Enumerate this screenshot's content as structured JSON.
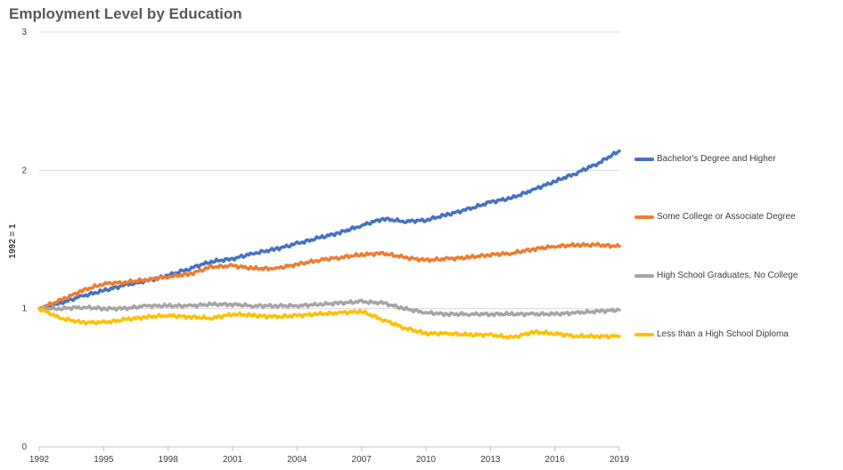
{
  "chart_data": {
    "type": "line",
    "title": "Employment Level by Education",
    "xlabel": "",
    "ylabel": "1992 = 1",
    "xlim": [
      1992,
      2019
    ],
    "ylim": [
      0,
      3
    ],
    "x_ticks": [
      1992,
      1995,
      1998,
      2001,
      2004,
      2007,
      2010,
      2013,
      2016,
      2019
    ],
    "y_ticks": [
      0,
      1,
      2,
      3
    ],
    "grid": "horizontal",
    "legend_position": "right",
    "series": [
      {
        "name": "Bachelor's Degree and Higher",
        "color": "#4472C4",
        "x": [
          1992,
          1993,
          1994,
          1995,
          1996,
          1997,
          1998,
          1999,
          2000,
          2001,
          2002,
          2003,
          2004,
          2005,
          2006,
          2007,
          2008,
          2009,
          2010,
          2011,
          2012,
          2013,
          2014,
          2015,
          2016,
          2017,
          2018,
          2019
        ],
        "values": [
          1.0,
          1.04,
          1.09,
          1.13,
          1.17,
          1.2,
          1.24,
          1.29,
          1.34,
          1.36,
          1.4,
          1.43,
          1.47,
          1.51,
          1.55,
          1.6,
          1.65,
          1.63,
          1.64,
          1.68,
          1.72,
          1.77,
          1.8,
          1.86,
          1.92,
          1.98,
          2.05,
          2.14
        ]
      },
      {
        "name": "Some College or Associate Degree",
        "color": "#ED7D31",
        "x": [
          1992,
          1993,
          1994,
          1995,
          1996,
          1997,
          1998,
          1999,
          2000,
          2001,
          2002,
          2003,
          2004,
          2005,
          2006,
          2007,
          2008,
          2009,
          2010,
          2011,
          2012,
          2013,
          2014,
          2015,
          2016,
          2017,
          2018,
          2019
        ],
        "values": [
          1.0,
          1.06,
          1.13,
          1.18,
          1.19,
          1.21,
          1.23,
          1.25,
          1.3,
          1.31,
          1.29,
          1.29,
          1.32,
          1.35,
          1.37,
          1.39,
          1.4,
          1.37,
          1.35,
          1.36,
          1.37,
          1.39,
          1.4,
          1.43,
          1.45,
          1.46,
          1.46,
          1.45
        ]
      },
      {
        "name": "High School Graduates, No College",
        "color": "#A5A5A5",
        "x": [
          1992,
          1993,
          1994,
          1995,
          1996,
          1997,
          1998,
          1999,
          2000,
          2001,
          2002,
          2003,
          2004,
          2005,
          2006,
          2007,
          2008,
          2009,
          2010,
          2011,
          2012,
          2013,
          2014,
          2015,
          2016,
          2017,
          2018,
          2019
        ],
        "values": [
          1.0,
          1.0,
          1.01,
          1.0,
          1.0,
          1.02,
          1.02,
          1.02,
          1.03,
          1.03,
          1.02,
          1.02,
          1.02,
          1.03,
          1.04,
          1.05,
          1.04,
          1.0,
          0.97,
          0.96,
          0.96,
          0.96,
          0.96,
          0.96,
          0.96,
          0.97,
          0.98,
          0.99
        ]
      },
      {
        "name": "Less than a High School Diploma",
        "color": "#FFC000",
        "x": [
          1992,
          1993,
          1994,
          1995,
          1996,
          1997,
          1998,
          1999,
          2000,
          2001,
          2002,
          2003,
          2004,
          2005,
          2006,
          2007,
          2008,
          2009,
          2010,
          2011,
          2012,
          2013,
          2014,
          2015,
          2016,
          2017,
          2018,
          2019
        ],
        "values": [
          1.0,
          0.93,
          0.9,
          0.9,
          0.92,
          0.94,
          0.95,
          0.94,
          0.93,
          0.96,
          0.95,
          0.94,
          0.95,
          0.96,
          0.97,
          0.98,
          0.92,
          0.86,
          0.82,
          0.82,
          0.81,
          0.81,
          0.79,
          0.83,
          0.82,
          0.8,
          0.8,
          0.8
        ]
      }
    ]
  }
}
